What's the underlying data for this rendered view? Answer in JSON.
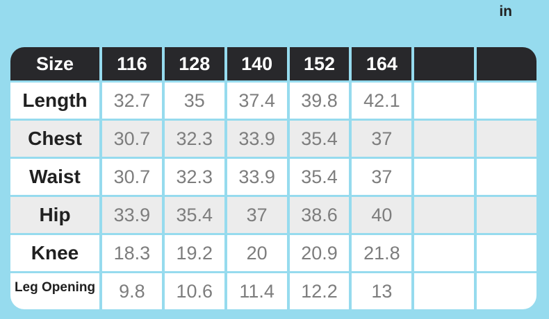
{
  "unit_label": "in",
  "colors": {
    "page_background": "#96dbee",
    "header_background": "#28282b",
    "header_text": "#ffffff",
    "row_background": "#ffffff",
    "row_alt_background": "#ececec",
    "label_text": "#202020",
    "value_text": "#7d7d7d"
  },
  "table": {
    "header": {
      "label": "Size",
      "columns": [
        "116",
        "128",
        "140",
        "152",
        "164",
        "",
        ""
      ]
    },
    "rows": [
      {
        "label": "Length",
        "shaded": false,
        "small_label": false,
        "values": [
          "32.7",
          "35",
          "37.4",
          "39.8",
          "42.1",
          "",
          ""
        ]
      },
      {
        "label": "Chest",
        "shaded": true,
        "small_label": false,
        "values": [
          "30.7",
          "32.3",
          "33.9",
          "35.4",
          "37",
          "",
          ""
        ]
      },
      {
        "label": "Waist",
        "shaded": false,
        "small_label": false,
        "values": [
          "30.7",
          "32.3",
          "33.9",
          "35.4",
          "37",
          "",
          ""
        ]
      },
      {
        "label": "Hip",
        "shaded": true,
        "small_label": false,
        "values": [
          "33.9",
          "35.4",
          "37",
          "38.6",
          "40",
          "",
          ""
        ]
      },
      {
        "label": "Knee",
        "shaded": false,
        "small_label": false,
        "values": [
          "18.3",
          "19.2",
          "20",
          "20.9",
          "21.8",
          "",
          ""
        ]
      },
      {
        "label": "Leg Opening",
        "shaded": false,
        "small_label": true,
        "values": [
          "9.8",
          "10.6",
          "11.4",
          "12.2",
          "13",
          "",
          ""
        ]
      }
    ]
  },
  "chart_data": {
    "type": "table",
    "title": "",
    "unit": "in",
    "columns": [
      "116",
      "128",
      "140",
      "152",
      "164"
    ],
    "rows": [
      {
        "label": "Length",
        "values": [
          32.7,
          35,
          37.4,
          39.8,
          42.1
        ]
      },
      {
        "label": "Chest",
        "values": [
          30.7,
          32.3,
          33.9,
          35.4,
          37
        ]
      },
      {
        "label": "Waist",
        "values": [
          30.7,
          32.3,
          33.9,
          35.4,
          37
        ]
      },
      {
        "label": "Hip",
        "values": [
          33.9,
          35.4,
          37,
          38.6,
          40
        ]
      },
      {
        "label": "Knee",
        "values": [
          18.3,
          19.2,
          20,
          20.9,
          21.8
        ]
      },
      {
        "label": "Leg Opening",
        "values": [
          9.8,
          10.6,
          11.4,
          12.2,
          13
        ]
      }
    ]
  }
}
